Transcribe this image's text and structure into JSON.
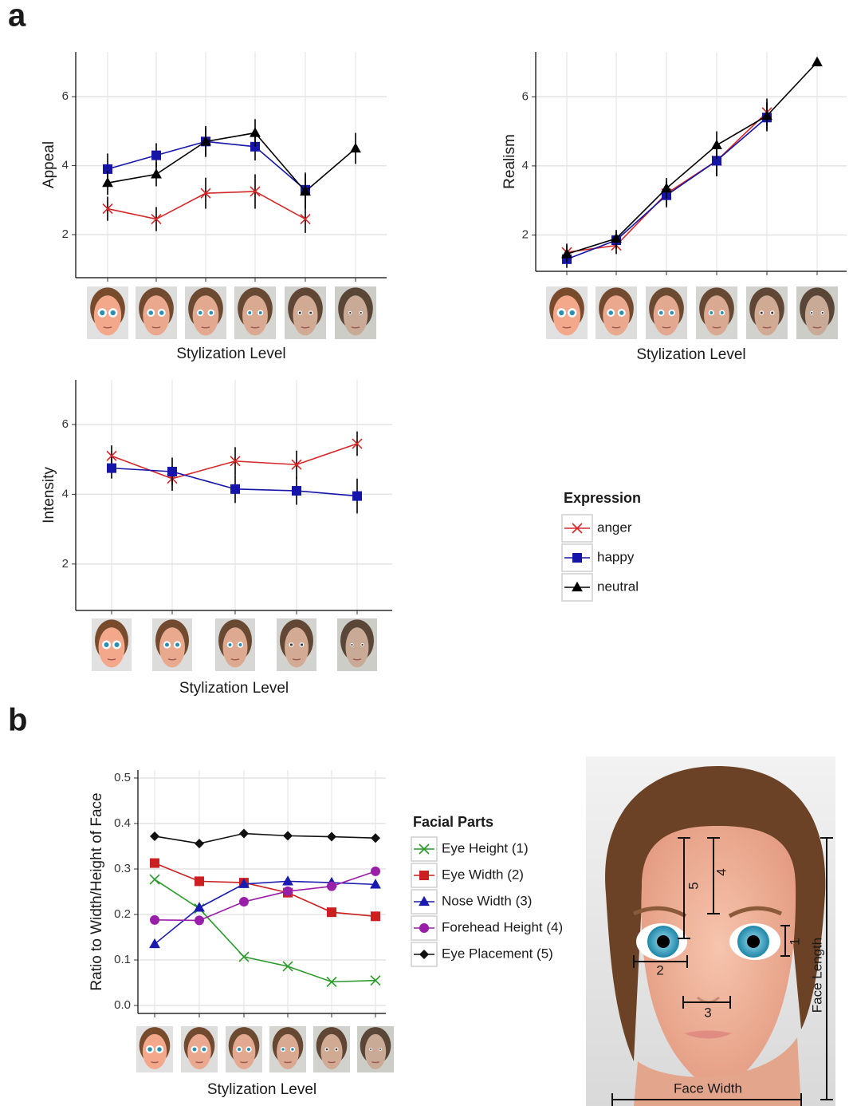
{
  "panel_labels": [
    "a",
    "b"
  ],
  "chart_data": [
    {
      "type": "line",
      "ylabel": "Appeal",
      "xlabel": "Stylization Level",
      "categories": [
        null,
        null,
        null,
        null,
        null,
        null
      ],
      "ylim": [
        0.75,
        7.3
      ],
      "yticks": [
        2,
        4,
        6
      ],
      "grid": true,
      "legend_title": "Expression",
      "series": [
        {
          "name": "anger",
          "color": "#d62728",
          "marker": "x",
          "values": [
            2.75,
            2.45,
            3.2,
            3.25,
            2.45,
            null
          ],
          "errors": [
            0.35,
            0.35,
            0.45,
            0.5,
            0.4,
            null
          ]
        },
        {
          "name": "happy",
          "color": "#1515a8",
          "marker": "square",
          "values": [
            3.9,
            4.3,
            4.7,
            4.55,
            3.3,
            null
          ],
          "errors": [
            0.45,
            0.35,
            0.4,
            0.4,
            0.5,
            null
          ]
        },
        {
          "name": "neutral",
          "color": "#000000",
          "marker": "triangle",
          "values": [
            3.5,
            3.75,
            4.7,
            4.95,
            3.25,
            4.5
          ],
          "errors": [
            0.35,
            0.35,
            0.45,
            0.4,
            0.5,
            0.45
          ]
        }
      ]
    },
    {
      "type": "line",
      "ylabel": "Realism",
      "xlabel": "Stylization Level",
      "categories": [
        null,
        null,
        null,
        null,
        null,
        null
      ],
      "ylim": [
        0.95,
        7.3
      ],
      "yticks": [
        2,
        4,
        6
      ],
      "grid": true,
      "series": [
        {
          "color": "#d62728",
          "marker": "x",
          "values": [
            1.5,
            1.7,
            3.2,
            4.15,
            5.55,
            null
          ],
          "errors": [
            0.25,
            0.25,
            0.35,
            0.45,
            0.4,
            null
          ]
        },
        {
          "color": "#1515a8",
          "marker": "square",
          "values": [
            1.3,
            1.85,
            3.15,
            4.15,
            5.4,
            null
          ],
          "errors": [
            0.25,
            0.25,
            0.35,
            0.45,
            0.4,
            null
          ]
        },
        {
          "color": "#000000",
          "marker": "triangle",
          "values": [
            1.45,
            1.9,
            3.35,
            4.6,
            5.45,
            7.0
          ],
          "errors": [
            0.25,
            0.25,
            0.3,
            0.4,
            0.4,
            null
          ]
        }
      ]
    },
    {
      "type": "line",
      "ylabel": "Intensity",
      "xlabel": "Stylization Level",
      "categories": [
        null,
        null,
        null,
        null,
        null
      ],
      "ylim": [
        0.67,
        7.28
      ],
      "yticks": [
        2,
        4,
        6
      ],
      "grid": true,
      "series": [
        {
          "color": "#d62728",
          "marker": "x",
          "values": [
            5.1,
            4.45,
            4.95,
            4.85,
            5.45
          ],
          "errors": [
            0.3,
            0.35,
            0.4,
            0.4,
            0.35
          ]
        },
        {
          "color": "#1515a8",
          "marker": "square",
          "values": [
            4.75,
            4.65,
            4.15,
            4.1,
            3.95
          ],
          "errors": [
            0.3,
            0.4,
            0.4,
            0.4,
            0.5
          ]
        }
      ]
    },
    {
      "type": "line",
      "ylabel": "Ratio to Width/Height of Face",
      "xlabel": "Stylization Level",
      "categories": [
        null,
        null,
        null,
        null,
        null,
        null
      ],
      "ylim": [
        -0.0175,
        0.5175
      ],
      "yticks": [
        {
          "value": 0,
          "label": "0.0"
        },
        0.1,
        0.2,
        0.3,
        0.4,
        0.5
      ],
      "grid": true,
      "legend_title": "Facial Parts",
      "series": [
        {
          "name": "Eye Height (1)",
          "color": "#2a9a2a",
          "marker": "x",
          "values": [
            0.277,
            0.213,
            0.107,
            0.086,
            0.052,
            0.055
          ]
        },
        {
          "name": "Eye Width (2)",
          "color": "#cc1f1f",
          "marker": "square",
          "values": [
            0.313,
            0.273,
            0.27,
            0.248,
            0.205,
            0.196
          ]
        },
        {
          "name": "Nose Width (3)",
          "color": "#1a1ab0",
          "marker": "triangle",
          "values": [
            0.135,
            0.215,
            0.267,
            0.273,
            0.27,
            0.266
          ]
        },
        {
          "name": "Forehead Height (4)",
          "color": "#9a1fa8",
          "marker": "circle",
          "values": [
            0.188,
            0.187,
            0.228,
            0.251,
            0.262,
            0.295
          ]
        },
        {
          "name": "Eye Placement (5)",
          "color": "#111111",
          "marker": "diamond",
          "values": [
            0.372,
            0.356,
            0.378,
            0.373,
            0.371,
            0.368
          ]
        }
      ]
    }
  ],
  "face_diagram": {
    "measures": [
      1,
      2,
      3,
      4,
      5
    ],
    "face_length": "Face Length",
    "face_width": "Face Width"
  }
}
